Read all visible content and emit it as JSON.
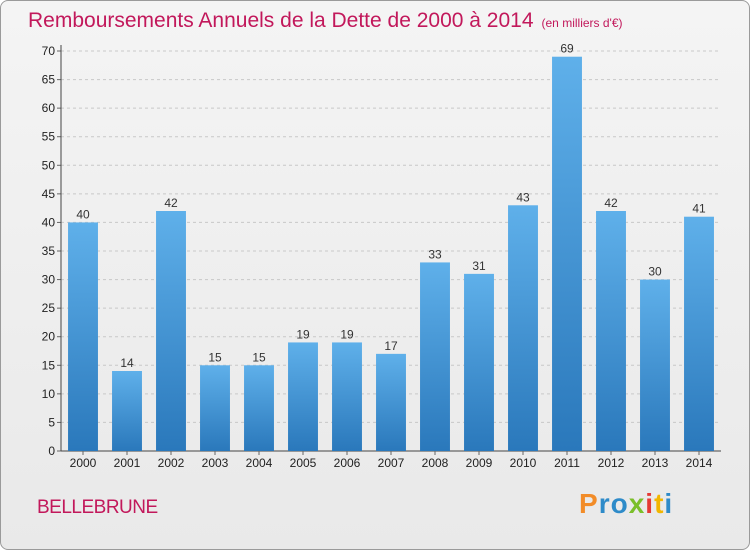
{
  "title": "Remboursements Annuels de la Dette de 2000 à 2014",
  "unit": "(en milliers d'€)",
  "commune": "BELLEBRUNE",
  "brand": [
    "P",
    "r",
    "o",
    "x",
    "i",
    "t",
    "i"
  ],
  "chart_data": {
    "type": "bar",
    "title": "Remboursements Annuels de la Dette de 2000 à 2014",
    "categories": [
      "2000",
      "2001",
      "2002",
      "2003",
      "2004",
      "2005",
      "2006",
      "2007",
      "2008",
      "2009",
      "2010",
      "2011",
      "2012",
      "2013",
      "2014"
    ],
    "values": [
      40,
      14,
      42,
      15,
      15,
      19,
      19,
      17,
      33,
      31,
      43,
      69,
      42,
      30,
      41
    ],
    "ylim": [
      0,
      70
    ],
    "yticks": [
      0,
      5,
      10,
      15,
      20,
      25,
      30,
      35,
      40,
      45,
      50,
      55,
      60,
      65,
      70
    ],
    "grid": true,
    "bar_color": "#3f97d8"
  }
}
